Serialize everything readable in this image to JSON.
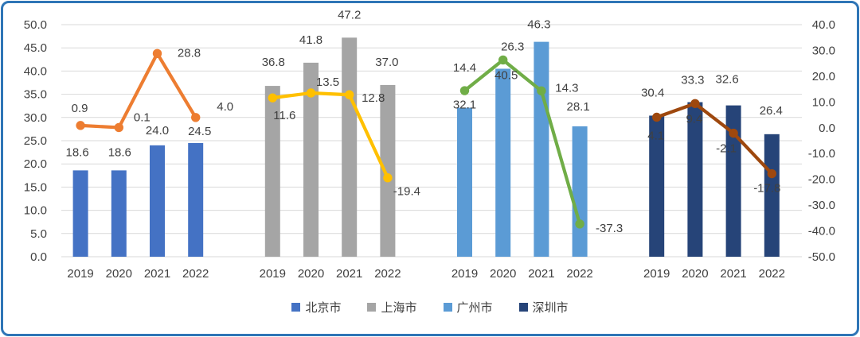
{
  "chart_data": {
    "type": "bar+line",
    "title": "",
    "categories": [
      "2019",
      "2020",
      "2021",
      "2022"
    ],
    "groups": [
      {
        "name": "北京市",
        "bar_values": [
          18.6,
          18.6,
          24.0,
          24.5
        ],
        "line_values": [
          0.9,
          0.1,
          28.8,
          4.0
        ],
        "bar_color": "#4472C4",
        "line_color": "#ED7D31"
      },
      {
        "name": "上海市",
        "bar_values": [
          36.8,
          41.8,
          47.2,
          37.0
        ],
        "line_values": [
          11.6,
          13.5,
          12.8,
          -19.4
        ],
        "bar_color": "#A5A5A5",
        "line_color": "#FFC000"
      },
      {
        "name": "广州市",
        "bar_values": [
          32.1,
          40.5,
          46.3,
          28.1
        ],
        "line_values": [
          14.4,
          26.3,
          14.3,
          -37.3
        ],
        "bar_color": "#5B9BD5",
        "line_color": "#70AD47"
      },
      {
        "name": "深圳市",
        "bar_values": [
          30.4,
          33.3,
          32.6,
          26.4
        ],
        "line_values": [
          4.1,
          9.4,
          -2.1,
          -17.8
        ],
        "bar_color": "#264478",
        "line_color": "#9E480E"
      }
    ],
    "left_axis": {
      "min": 0,
      "max": 50,
      "step": 5,
      "tick_labels": [
        "50.0",
        "45.0",
        "40.0",
        "35.0",
        "30.0",
        "25.0",
        "20.0",
        "15.0",
        "10.0",
        "5.0",
        "0.0"
      ]
    },
    "right_axis": {
      "min": -50,
      "max": 40,
      "step": 10,
      "tick_labels": [
        "40.0",
        "30.0",
        "20.0",
        "10.0",
        "0.0",
        "-10.0",
        "-20.0",
        "-30.0",
        "-40.0",
        "-50.0"
      ]
    },
    "legend": {
      "position": "bottom",
      "items": [
        {
          "label": "北京市",
          "color": "#4472C4"
        },
        {
          "label": "上海市",
          "color": "#A5A5A5"
        },
        {
          "label": "广州市",
          "color": "#5B9BD5"
        },
        {
          "label": "深圳市",
          "color": "#264478"
        }
      ]
    },
    "grid": true,
    "colors": {
      "gridline": "#D9D9D9",
      "text": "#404040",
      "frame_border": "#2E75B6",
      "background": "#FFFFFF"
    }
  }
}
